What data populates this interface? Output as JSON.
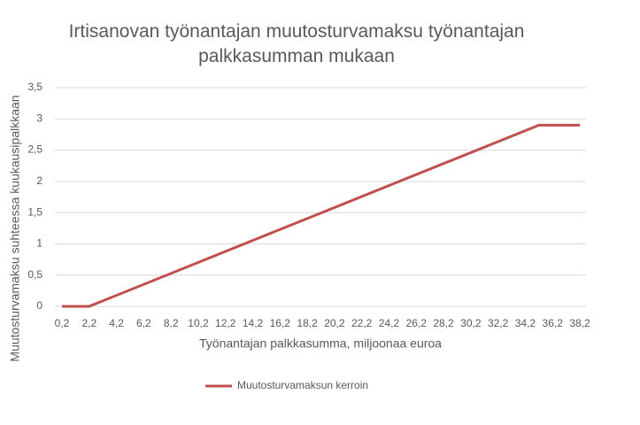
{
  "chart_data": {
    "type": "line",
    "title": "Irtisanovan työnantajan muutosturvamaksu työnantajan palkkasumman mukaan",
    "x_label": "Työnantajan palkkasumma, miljoonaa euroa",
    "y_label": "Muutosturvamaksu suhteessa kuukausipalkkaan",
    "x": [
      0.2,
      2.2,
      35.2,
      38.2
    ],
    "series": [
      {
        "name": "Muutosturvamaksun kerroin",
        "color": "#c0504d",
        "values": [
          0,
          0,
          2.9,
          2.9
        ]
      }
    ],
    "xlim": [
      0.2,
      38.2
    ],
    "xticks": [
      {
        "value": 0.2,
        "label": "0,2"
      },
      {
        "value": 2.2,
        "label": "2,2"
      },
      {
        "value": 4.2,
        "label": "4,2"
      },
      {
        "value": 6.2,
        "label": "6,2"
      },
      {
        "value": 8.2,
        "label": "8,2"
      },
      {
        "value": 10.2,
        "label": "10,2"
      },
      {
        "value": 12.2,
        "label": "12,2"
      },
      {
        "value": 14.2,
        "label": "14,2"
      },
      {
        "value": 16.2,
        "label": "16,2"
      },
      {
        "value": 18.2,
        "label": "18,2"
      },
      {
        "value": 20.2,
        "label": "20,2"
      },
      {
        "value": 22.2,
        "label": "22,2"
      },
      {
        "value": 24.2,
        "label": "24,2"
      },
      {
        "value": 26.2,
        "label": "26,2"
      },
      {
        "value": 28.2,
        "label": "28,2"
      },
      {
        "value": 30.2,
        "label": "30,2"
      },
      {
        "value": 32.2,
        "label": "32,2"
      },
      {
        "value": 34.2,
        "label": "34,2"
      },
      {
        "value": 36.2,
        "label": "36,2"
      },
      {
        "value": 38.2,
        "label": "38,2"
      }
    ],
    "ylim": [
      0,
      3.5
    ],
    "yticks": [
      0,
      {
        "value": 0.5,
        "label": "0,5"
      },
      1,
      {
        "value": 1.5,
        "label": "1,5"
      },
      2,
      {
        "value": 2.5,
        "label": "2,5"
      },
      3,
      {
        "value": 3.5,
        "label": "3,5"
      }
    ],
    "grid": true
  }
}
